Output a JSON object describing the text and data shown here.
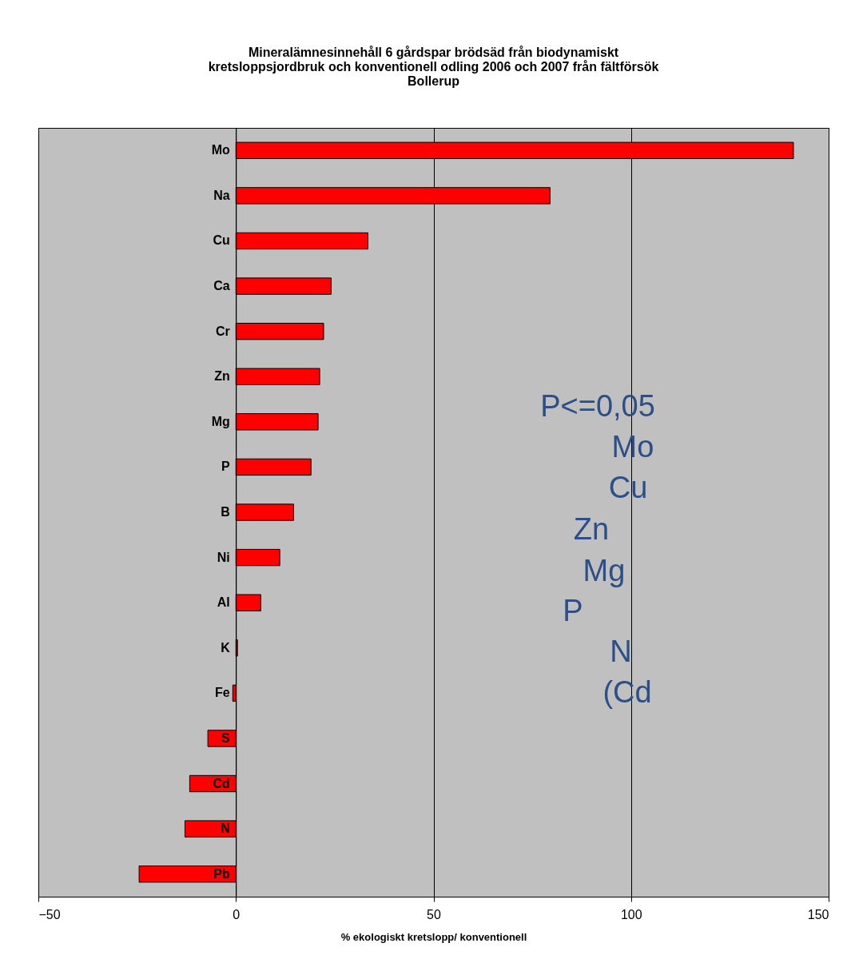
{
  "chart_data": {
    "type": "bar",
    "orientation": "horizontal",
    "title": "Mineralämnesinnehåll 6 gårdspar brödsäd från biodynamiskt kretsloppsjordbruk och konventionell odling 2006 och 2007 från fältförsök Bollerup",
    "xlabel": "% ekologiskt kretslopp/ konventionell",
    "categories": [
      "Mo",
      "Na",
      "Cu",
      "Ca",
      "Cr",
      "Zn",
      "Mg",
      "P",
      "B",
      "Ni",
      "Al",
      "K",
      "Fe",
      "S",
      "Cd",
      "N",
      "Pb"
    ],
    "values": [
      141.1,
      79.5,
      33.4,
      24.1,
      22.2,
      21.2,
      20.8,
      19.0,
      14.6,
      11.1,
      6.3,
      0.4,
      -0.8,
      -7.1,
      -11.7,
      -12.9,
      -24.5
    ],
    "color": "#ff0000",
    "xlim": [
      -50,
      150
    ],
    "xticks": [
      -50,
      0,
      50,
      100,
      150
    ],
    "grid": "x",
    "annotations": [
      "P<=0,05",
      "Mo",
      "Cu",
      "Zn",
      "Mg",
      "P",
      "N",
      "(Cd"
    ]
  }
}
